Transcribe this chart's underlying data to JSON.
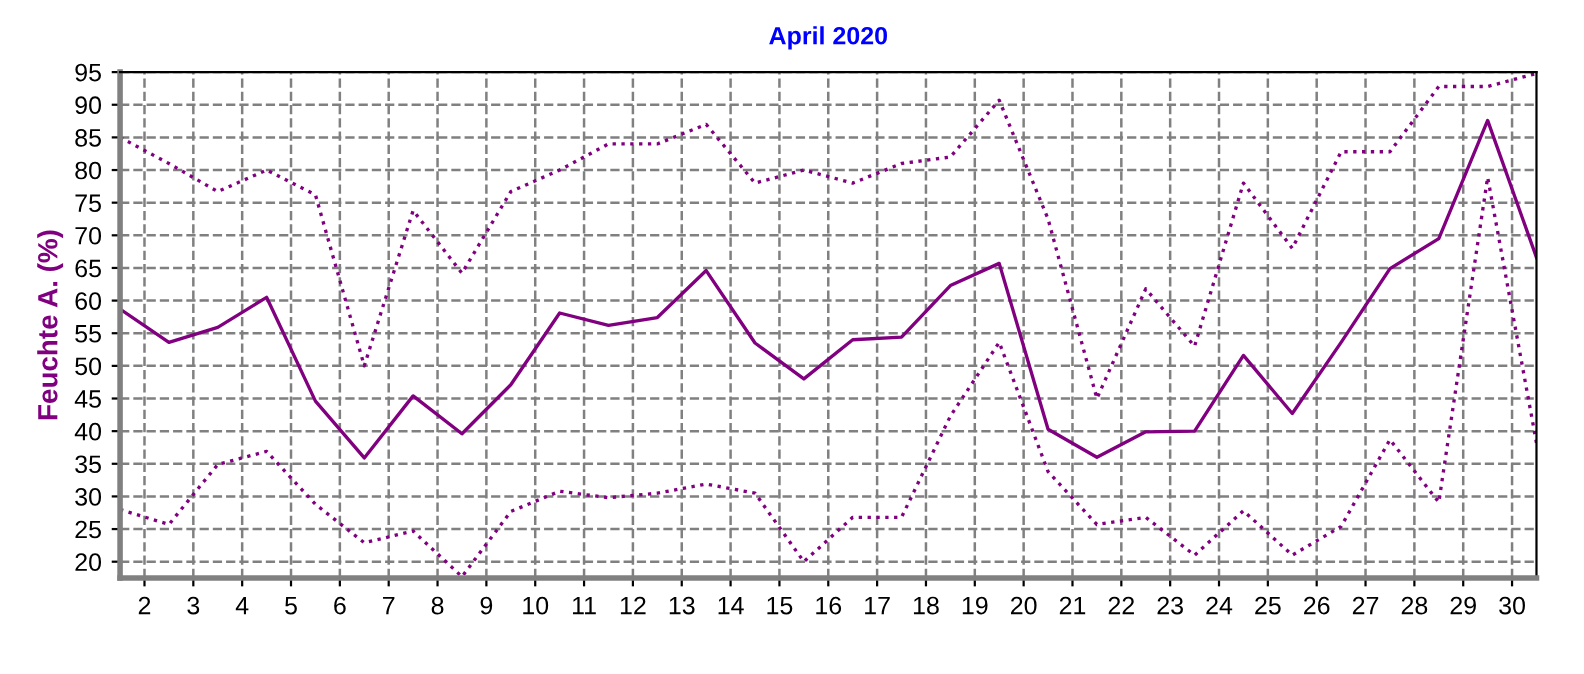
{
  "chart_data": {
    "type": "line",
    "title": "April 2020",
    "ylabel": "Feuchte A. (%)",
    "x": [
      1.5,
      2.5,
      3.5,
      4.5,
      5.5,
      6.5,
      7.5,
      8.5,
      9.5,
      10.5,
      11.5,
      12.5,
      13.5,
      14.5,
      15.5,
      16.5,
      17.5,
      18.5,
      19.5,
      20.5,
      21.5,
      22.5,
      23.5,
      24.5,
      25.5,
      26.5,
      27.5,
      28.5,
      29.5,
      30.5
    ],
    "series": [
      {
        "color": "#800080",
        "line_style": "dotted",
        "values": [
          85,
          81,
          76.7,
          80,
          76.2,
          50,
          73.8,
          64.2,
          76.7,
          80,
          84,
          84,
          87,
          78,
          80,
          78,
          81,
          82,
          90.7,
          72.5,
          45,
          61.8,
          53,
          78,
          68,
          82.8,
          82.8,
          92.8,
          92.8,
          94.8
        ]
      },
      {
        "color": "#800080",
        "line_style": "solid",
        "values": [
          58.7,
          53.6,
          55.9,
          60.5,
          44.6,
          35.9,
          45.4,
          39.6,
          47.1,
          58.1,
          56.2,
          57.4,
          64.6,
          53.5,
          48,
          54,
          54.4,
          62.3,
          65.7,
          40.3,
          36,
          39.9,
          40,
          51.6,
          42.7,
          53.6,
          64.9,
          69.5,
          87.6,
          66.6
        ]
      },
      {
        "color": "#800080",
        "line_style": "dotted",
        "values": [
          28,
          25.7,
          34.9,
          36.9,
          28.8,
          22.9,
          24.7,
          17.7,
          27.7,
          30.8,
          29.8,
          30.5,
          31.9,
          30.5,
          20,
          26.8,
          26.8,
          42.3,
          53.6,
          33.8,
          25.7,
          26.8,
          21,
          27.8,
          21,
          25.4,
          38.7,
          29.1,
          78.9,
          38.2
        ]
      }
    ],
    "xlim": [
      1.5,
      30.5
    ],
    "xticks": [
      2,
      3,
      4,
      5,
      6,
      7,
      8,
      9,
      10,
      11,
      12,
      13,
      14,
      15,
      16,
      17,
      18,
      19,
      20,
      21,
      22,
      23,
      24,
      25,
      26,
      27,
      28,
      29,
      30
    ],
    "ylim": [
      17.5,
      95
    ],
    "yticks": [
      20,
      25,
      30,
      35,
      40,
      45,
      50,
      55,
      60,
      65,
      70,
      75,
      80,
      85,
      90,
      95
    ],
    "grid": true,
    "legend": false,
    "marker": "none"
  }
}
